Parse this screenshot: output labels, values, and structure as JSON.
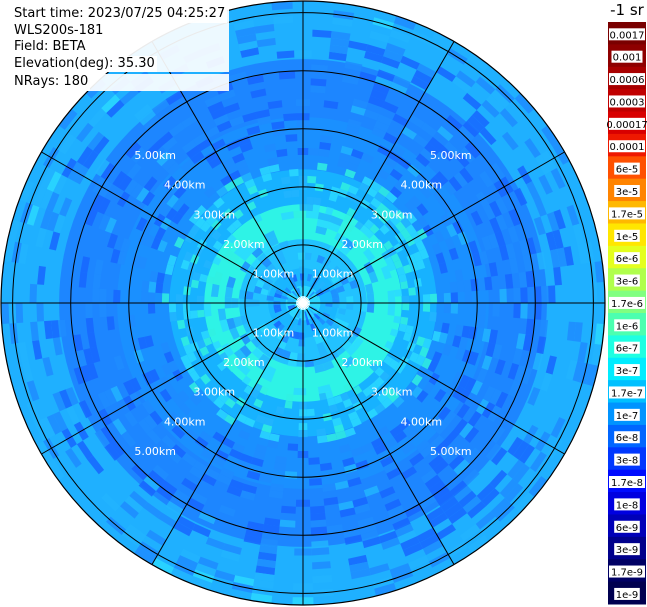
{
  "header": {
    "start_time": "Start time: 2023/07/25 04:25:27",
    "instrument": "WLS200s-181",
    "field": "Field: BETA",
    "elevation": "Elevation(deg): 35.30",
    "nrays": "NRays: 180"
  },
  "chart_data": {
    "type": "heatmap",
    "projection": "polar-ppi",
    "field": "BETA",
    "elevation_deg": 35.3,
    "n_rays": 180,
    "max_range_km": 5.2,
    "range_ring_labels": [
      "1.00km",
      "2.00km",
      "3.00km",
      "4.00km",
      "5.00km"
    ],
    "range_rings_km": [
      1,
      2,
      3,
      4,
      5
    ],
    "spoke_angles_deg": [
      0,
      30,
      60,
      90,
      120,
      150,
      180,
      210,
      240,
      270,
      300,
      330
    ],
    "colorbar": {
      "unit_label": "-1 sr",
      "tick_labels": [
        "0.0017",
        "0.001",
        "0.0006",
        "0.0003",
        "0.00017",
        "0.0001",
        "6e-5",
        "3e-5",
        "1.7e-5",
        "1e-5",
        "6e-6",
        "3e-6",
        "1.7e-6",
        "1e-6",
        "6e-7",
        "3e-7",
        "1.7e-7",
        "1e-7",
        "6e-8",
        "3e-8",
        "1.7e-8",
        "1e-8",
        "6e-9",
        "3e-9",
        "1.7e-9",
        "1e-9"
      ],
      "colors": [
        "#7a0000",
        "#8e0000",
        "#a80000",
        "#c00000",
        "#d80000",
        "#ee1800",
        "#ff5000",
        "#ff8400",
        "#ffb800",
        "#ffe600",
        "#e4ff1e",
        "#b0ff4c",
        "#80ff80",
        "#4cffb0",
        "#1effe2",
        "#00ecff",
        "#00c0ff",
        "#0094ff",
        "#0066ff",
        "#0038ff",
        "#000cff",
        "#0000e0",
        "#0000b8",
        "#00008c",
        "#000064",
        "#000050"
      ]
    },
    "rings_profile": [
      {
        "range_km": 0.3,
        "color": "#2bd7ff"
      },
      {
        "range_km": 0.6,
        "color": "#19b6ff"
      },
      {
        "range_km": 1.1,
        "color": "#22c2ff"
      },
      {
        "range_km": 1.7,
        "color": "#2ef3e6"
      },
      {
        "range_km": 2.3,
        "color": "#17b2ff"
      },
      {
        "range_km": 3.2,
        "color": "#1a90ff"
      },
      {
        "range_km": 4.2,
        "color": "#1d86ff"
      },
      {
        "range_km": 5.2,
        "color": "#1fb0ff"
      }
    ]
  }
}
